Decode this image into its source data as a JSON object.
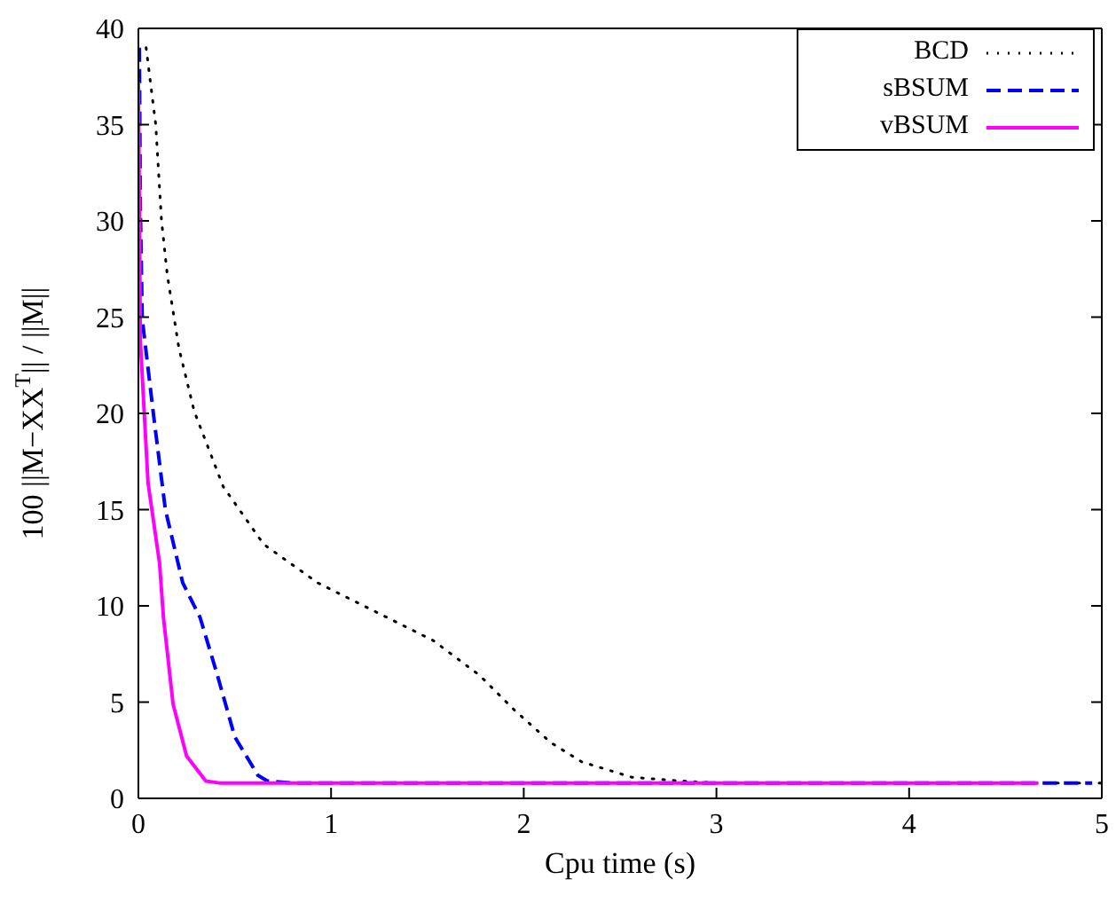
{
  "chart_data": {
    "type": "line",
    "xlabel": "Cpu time (s)",
    "ylabel": "100 ||M−XX$^{T}$|| / ||M||",
    "xlim": [
      0,
      5
    ],
    "xticks": [
      0,
      1,
      2,
      3,
      4,
      5
    ],
    "ylim": [
      0,
      40
    ],
    "yticks": [
      0,
      5,
      10,
      15,
      20,
      25,
      30,
      35,
      40
    ],
    "grid": false,
    "legend": "top right",
    "marker": "none",
    "series": [
      {
        "name": "BCD",
        "color": "#000000",
        "line_style": "dotted",
        "x": [
          0.04,
          0.09,
          0.12,
          0.15,
          0.21,
          0.29,
          0.44,
          0.65,
          0.93,
          1.23,
          1.53,
          1.77,
          1.95,
          2.14,
          2.3,
          2.56,
          2.82,
          3.0,
          5.0
        ],
        "values": [
          39,
          35,
          30,
          27.2,
          23.4,
          20.1,
          16.2,
          13.2,
          11.2,
          9.7,
          8.2,
          6.4,
          4.6,
          2.9,
          1.9,
          1.1,
          0.9,
          0.8,
          0.8
        ]
      },
      {
        "name": "sBSUM",
        "color": "#0000ff",
        "line_style": "dashed",
        "x": [
          0.005,
          0.01,
          0.02,
          0.08,
          0.14,
          0.23,
          0.32,
          0.41,
          0.5,
          0.62,
          0.67,
          0.8,
          4.95
        ],
        "values": [
          39,
          30.8,
          24.9,
          19.8,
          15.0,
          11.2,
          9.4,
          6.4,
          3.2,
          1.2,
          0.9,
          0.8,
          0.8
        ]
      },
      {
        "name": "vBSUM",
        "color": "#ff00ff",
        "line_style": "solid",
        "x": [
          0.0,
          0.005,
          0.01,
          0.05,
          0.11,
          0.13,
          0.18,
          0.25,
          0.35,
          0.42,
          4.67
        ],
        "values": [
          37.2,
          30.8,
          23.8,
          16.4,
          12.2,
          9.4,
          4.9,
          2.2,
          0.9,
          0.8,
          0.8
        ]
      }
    ]
  }
}
